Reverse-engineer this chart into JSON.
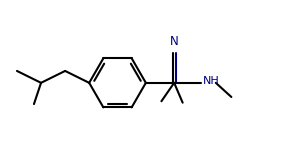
{
  "bg_color": "#ffffff",
  "line_color": "#000000",
  "cn_color": "#000080",
  "nh_color": "#000080",
  "line_width": 1.5,
  "figsize": [
    2.86,
    1.6
  ],
  "dpi": 100,
  "xlim": [
    0,
    10
  ],
  "ylim": [
    0,
    5.6
  ]
}
